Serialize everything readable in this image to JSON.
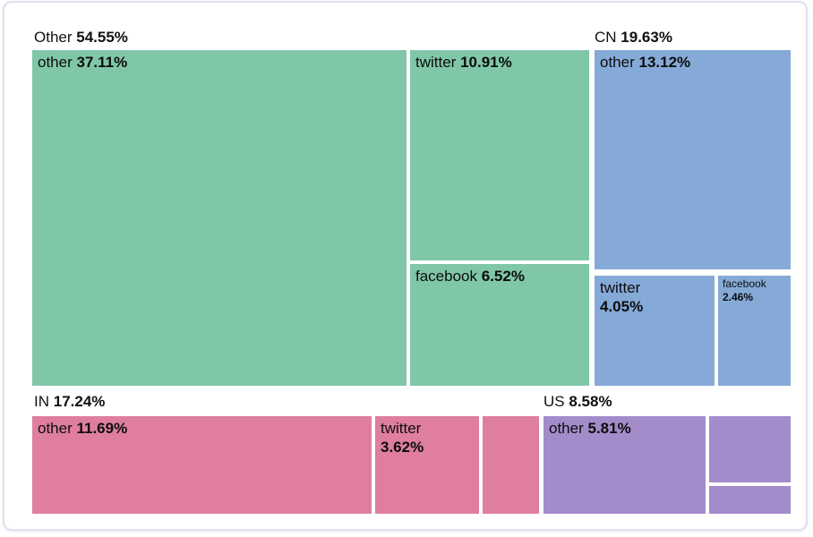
{
  "chart_data": {
    "type": "treemap",
    "title": "",
    "legend_position": "none",
    "unit": "percent share",
    "groups": [
      {
        "name": "Other",
        "value": "54.55%",
        "color": "#80c7a8",
        "children": [
          {
            "name": "other",
            "value": "37.11%"
          },
          {
            "name": "twitter",
            "value": "10.91%"
          },
          {
            "name": "facebook",
            "value": "6.52%"
          }
        ]
      },
      {
        "name": "CN",
        "value": "19.63%",
        "color": "#85aad8",
        "children": [
          {
            "name": "other",
            "value": "13.12%"
          },
          {
            "name": "twitter",
            "value": "4.05%"
          },
          {
            "name": "facebook",
            "value": "2.46%"
          }
        ]
      },
      {
        "name": "IN",
        "value": "17.24%",
        "color": "#df7f9d",
        "children": [
          {
            "name": "other",
            "value": "11.69%"
          },
          {
            "name": "twitter",
            "value": "3.62%"
          },
          {
            "name": "",
            "value": ""
          }
        ]
      },
      {
        "name": "US",
        "value": "8.58%",
        "color": "#a48ccb",
        "children": [
          {
            "name": "other",
            "value": "5.81%"
          },
          {
            "name": "",
            "value": ""
          },
          {
            "name": "",
            "value": ""
          }
        ]
      }
    ]
  }
}
